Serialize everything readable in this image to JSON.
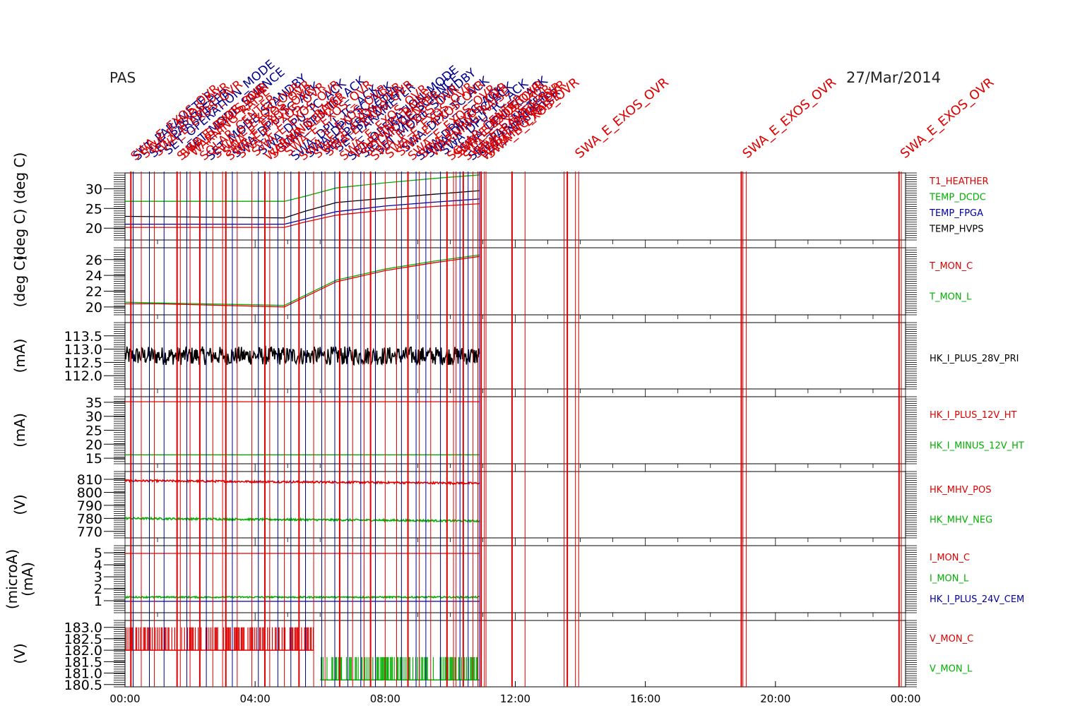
{
  "header": {
    "instrument": "PAS",
    "date": "27/Mar/2014"
  },
  "colors": {
    "red": "#e00000",
    "green": "#00b000",
    "blue": "#0000a0",
    "black": "#000000",
    "event_red": "#dd0000",
    "event_blue": "#00008b"
  },
  "events": {
    "labels_red": [
      "SWA_E_EXOS_OVR",
      "SWA_E_EXOS_OVR",
      "SWA_E_EXOS_OVR",
      "SWA_E_EXOS_OVR",
      "SWA_E_EXOS_OVR",
      "WARNING_RAISE",
      "SOLAR_CENTER"
    ],
    "labels_blue": [
      "SET_PARAMETER",
      "SET_PARAMETER",
      "SET_OPERATION_MODE",
      "SET_MODE_SCIENCE",
      "SET_MODE_STANDBY",
      "SWA_DPU_TC_ACK",
      "SWA_DPU_TC_ACK",
      "SWA_DPU_TC_ACK",
      "SWA_DPU_TC_ACK",
      "SWA_DPU_TC_ACK"
    ],
    "red_hours": [
      0.18,
      0.5,
      0.9,
      1.6,
      1.7,
      2.0,
      2.3,
      2.7,
      3.0,
      3.1,
      3.45,
      3.9,
      4.3,
      4.45,
      4.9,
      5.35,
      5.8,
      6.15,
      6.6,
      7.0,
      7.35,
      7.55,
      8.0,
      8.35,
      8.7,
      9.05,
      9.4,
      9.9,
      10.1,
      10.18,
      10.4,
      10.7,
      10.85,
      10.95,
      11.05,
      11.1,
      11.9,
      12.3,
      13.5,
      13.6,
      13.85,
      13.95,
      18.95,
      19.0,
      19.1,
      23.8,
      23.87
    ],
    "blue_hours": [
      0.25,
      0.75,
      1.2,
      1.9,
      2.5,
      3.3,
      4.1,
      4.7,
      5.1,
      5.55,
      6.05,
      6.45,
      6.85,
      7.25,
      7.7,
      8.5,
      8.95,
      9.25,
      9.7,
      10.3,
      10.55,
      10.9
    ],
    "legible_red_labels": [
      {
        "hour": 11.1,
        "text": "SWA_E_EXOS_OVR"
      },
      {
        "hour": 13.85,
        "text": "SWA_E_EXOS_OVR"
      },
      {
        "hour": 19.0,
        "text": "SWA_E_EXOS_OVR"
      },
      {
        "hour": 23.85,
        "text": "SWA_E_EXOS_OVR"
      }
    ]
  },
  "chart_data": {
    "type": "line",
    "x_unit": "time of day",
    "x_range_hours": [
      0,
      24
    ],
    "x_ticks": [
      "00:00",
      "04:00",
      "08:00",
      "12:00",
      "16:00",
      "20:00",
      "00:00"
    ],
    "data_end_hour": 10.9,
    "panels": [
      {
        "ylabel": "(deg C)   (deg C)",
        "ylim": [
          17,
          34
        ],
        "yticks": [
          "20",
          "25",
          "30"
        ],
        "ytick_values": [
          20,
          25,
          30
        ],
        "series": [
          {
            "name": "T1_HEATHER",
            "color": "red",
            "x": [
              0,
              4.9,
              5.5,
              6.5,
              8,
              9.5,
              10.9
            ],
            "y": [
              20.2,
              20.2,
              21.5,
              23.3,
              24.6,
              25.5,
              26.2
            ]
          },
          {
            "name": "TEMP_DCDC",
            "color": "green",
            "x": [
              0,
              4.9,
              5.5,
              6.5,
              8,
              9.5,
              10.9
            ],
            "y": [
              26.8,
              26.8,
              28.0,
              30.2,
              31.5,
              32.6,
              33.5
            ]
          },
          {
            "name": "TEMP_FPGA",
            "color": "blue",
            "x": [
              0,
              4.9,
              5.5,
              6.5,
              8,
              9.5,
              10.9
            ],
            "y": [
              21.0,
              21.0,
              22.2,
              24.2,
              25.6,
              26.6,
              27.4
            ]
          },
          {
            "name": "TEMP_HVPS",
            "color": "black",
            "x": [
              0,
              4.9,
              5.5,
              6.5,
              8,
              9.5,
              10.9
            ],
            "y": [
              23.0,
              22.6,
              24.2,
              26.5,
              27.6,
              28.6,
              29.5
            ]
          }
        ]
      },
      {
        "ylabel": "(deg C)",
        "ylim": [
          19,
          27.5
        ],
        "yticks": [
          "20",
          "22",
          "24",
          "26"
        ],
        "ytick_values": [
          20,
          22,
          24,
          26
        ],
        "series": [
          {
            "name": "T_MON_C",
            "color": "red",
            "x": [
              0,
              1,
              4.9,
              5.6,
              6.5,
              8,
              9.5,
              10.9
            ],
            "y": [
              20.4,
              20.4,
              20.0,
              21.4,
              23.2,
              24.6,
              25.6,
              26.4
            ]
          },
          {
            "name": "T_MON_L",
            "color": "green",
            "x": [
              0,
              1,
              4.9,
              5.6,
              6.5,
              8,
              9.5,
              10.9
            ],
            "y": [
              20.6,
              20.5,
              20.2,
              21.6,
              23.4,
              24.8,
              25.8,
              26.6
            ]
          }
        ]
      },
      {
        "ylabel": "(mA)",
        "ylim": [
          111.5,
          114.0
        ],
        "yticks": [
          "112.0",
          "112.5",
          "113.0",
          "113.5"
        ],
        "ytick_values": [
          112.0,
          112.5,
          113.0,
          113.5
        ],
        "series": [
          {
            "name": "HK_I_PLUS_28V_PRI",
            "color": "black",
            "noise": true,
            "x": [
              0,
              10.9
            ],
            "y": [
              112.75,
              112.75
            ],
            "spread": 0.7
          }
        ]
      },
      {
        "ylabel": "(mA)",
        "ylim": [
          13,
          37
        ],
        "yticks": [
          "15",
          "20",
          "25",
          "30",
          "35"
        ],
        "ytick_values": [
          15,
          20,
          25,
          30,
          35
        ],
        "series": [
          {
            "name": "HK_I_PLUS_12V_HT",
            "color": "red",
            "x": [
              0,
              10.9
            ],
            "y": [
              35.2,
              35.2
            ]
          },
          {
            "name": "HK_I_MINUS_12V_HT",
            "color": "green",
            "x": [
              0,
              10.9
            ],
            "y": [
              16.2,
              16.2
            ]
          }
        ]
      },
      {
        "ylabel": "(V)",
        "ylim": [
          765,
          816
        ],
        "yticks": [
          "770",
          "780",
          "790",
          "800",
          "810"
        ],
        "ytick_values": [
          770,
          780,
          790,
          800,
          810
        ],
        "series": [
          {
            "name": "HK_MHV_POS",
            "color": "red",
            "noise": true,
            "x": [
              0,
              10.9
            ],
            "y": [
              809,
              807
            ],
            "spread": 1.5
          },
          {
            "name": "HK_MHV_NEG",
            "color": "green",
            "noise": true,
            "x": [
              0,
              10.9
            ],
            "y": [
              780,
              778
            ],
            "spread": 1.5
          }
        ]
      },
      {
        "ylabel": "(microA)\n(mA)",
        "ylim": [
          0,
          5.6
        ],
        "yticks": [
          "1",
          "2",
          "3",
          "4",
          "5"
        ],
        "ytick_values": [
          1,
          2,
          3,
          4,
          5
        ],
        "series": [
          {
            "name": "I_MON_C",
            "color": "red",
            "x": [
              0,
              10.9
            ],
            "y": [
              4.95,
              4.95
            ]
          },
          {
            "name": "I_MON_L",
            "color": "green",
            "noise": true,
            "x": [
              0,
              10.9
            ],
            "y": [
              1.3,
              1.3
            ],
            "spread": 0.12
          },
          {
            "name": "HK_I_PLUS_24V_CEM",
            "color": "blue",
            "x": [
              0,
              10.9
            ],
            "y": [
              0.95,
              0.95
            ]
          }
        ]
      },
      {
        "ylabel": "(V)",
        "ylim": [
          180.4,
          183.3
        ],
        "yticks": [
          "180.5",
          "181.0",
          "181.5",
          "182.0",
          "182.5",
          "183.0"
        ],
        "ytick_values": [
          180.5,
          181.0,
          181.5,
          182.0,
          182.5,
          183.0
        ],
        "series": [
          {
            "name": "V_MON_C",
            "color": "red",
            "toggle": true,
            "x": [
              0,
              5.8
            ],
            "y": [
              182.0,
              183.0
            ]
          },
          {
            "name": "V_MON_L",
            "color": "green",
            "toggle": true,
            "x": [
              6.0,
              10.9
            ],
            "y": [
              180.7,
              181.7
            ]
          }
        ]
      }
    ]
  }
}
